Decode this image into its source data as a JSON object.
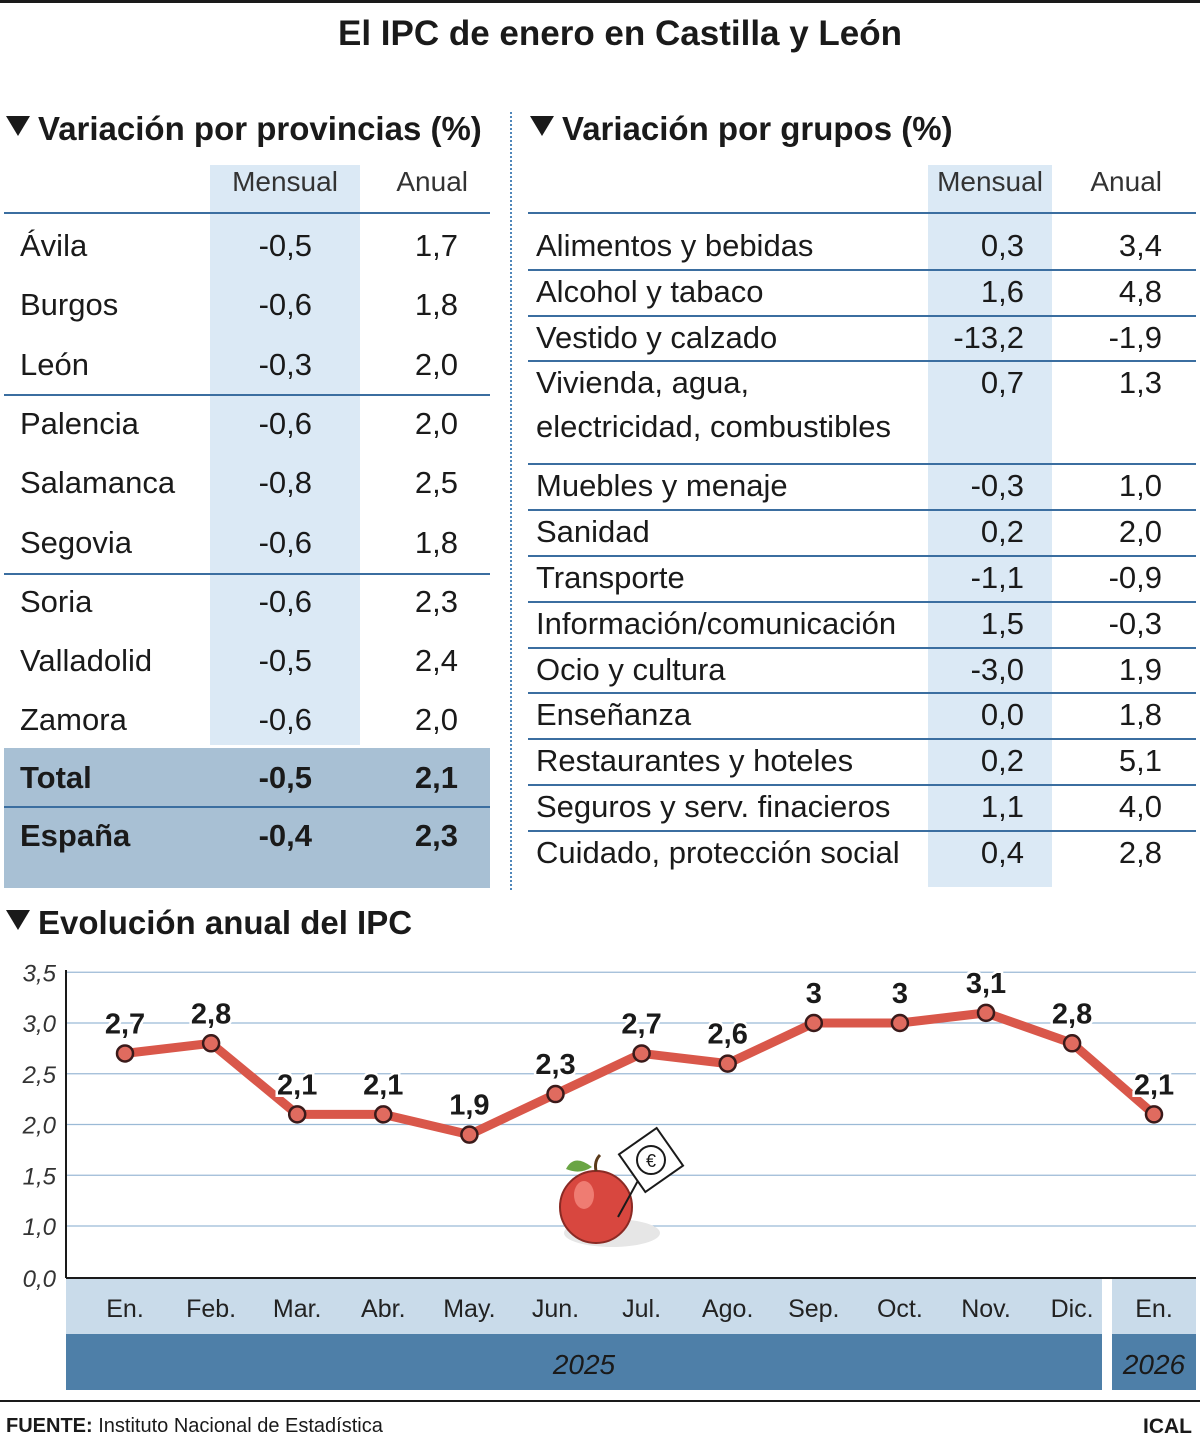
{
  "title": "El IPC de enero en Castilla y León",
  "provincias": {
    "title": "Variación por provincias (%)",
    "col_mensual": "Mensual",
    "col_anual": "Anual",
    "rows": [
      {
        "name": "Ávila",
        "mensual": "-0,5",
        "anual": "1,7"
      },
      {
        "name": "Burgos",
        "mensual": "-0,6",
        "anual": "1,8"
      },
      {
        "name": "León",
        "mensual": "-0,3",
        "anual": "2,0"
      },
      {
        "name": "Palencia",
        "mensual": "-0,6",
        "anual": "2,0"
      },
      {
        "name": "Salamanca",
        "mensual": "-0,8",
        "anual": "2,5"
      },
      {
        "name": "Segovia",
        "mensual": "-0,6",
        "anual": "1,8"
      },
      {
        "name": "Soria",
        "mensual": "-0,6",
        "anual": "2,3"
      },
      {
        "name": "Valladolid",
        "mensual": "-0,5",
        "anual": "2,4"
      },
      {
        "name": "Zamora",
        "mensual": "-0,6",
        "anual": "2,0"
      }
    ],
    "total": {
      "name": "Total",
      "mensual": "-0,5",
      "anual": "2,1"
    },
    "espana": {
      "name": "España",
      "mensual": "-0,4",
      "anual": "2,3"
    }
  },
  "grupos": {
    "title": "Variación por grupos (%)",
    "col_mensual": "Mensual",
    "col_anual": "Anual",
    "rows": [
      {
        "name": "Alimentos y bebidas",
        "mensual": "0,3",
        "anual": "3,4"
      },
      {
        "name": "Alcohol y tabaco",
        "mensual": "1,6",
        "anual": "4,8"
      },
      {
        "name": "Vestido y calzado",
        "mensual": "-13,2",
        "anual": "-1,9"
      },
      {
        "name": "Vivienda, agua,",
        "name2": "electricidad, combustibles",
        "mensual": "0,7",
        "anual": "1,3"
      },
      {
        "name": "Muebles y menaje",
        "mensual": "-0,3",
        "anual": "1,0"
      },
      {
        "name": "Sanidad",
        "mensual": "0,2",
        "anual": "2,0"
      },
      {
        "name": "Transporte",
        "mensual": "-1,1",
        "anual": "-0,9"
      },
      {
        "name": "Información/comunicación",
        "mensual": "1,5",
        "anual": "-0,3"
      },
      {
        "name": "Ocio y cultura",
        "mensual": "-3,0",
        "anual": "1,9"
      },
      {
        "name": "Enseñanza",
        "mensual": "0,0",
        "anual": "1,8"
      },
      {
        "name": "Restaurantes y hoteles",
        "mensual": "0,2",
        "anual": "5,1"
      },
      {
        "name": "Seguros y serv. finacieros",
        "mensual": "1,1",
        "anual": "4,0"
      },
      {
        "name": "Cuidado, protección social",
        "mensual": "0,4",
        "anual": "2,8"
      }
    ]
  },
  "chart_data": {
    "type": "line",
    "title": "Evolución anual del IPC",
    "categories": [
      "En.",
      "Feb.",
      "Mar.",
      "Abr.",
      "May.",
      "Jun.",
      "Jul.",
      "Ago.",
      "Sep.",
      "Oct.",
      "Nov.",
      "Dic.",
      "En."
    ],
    "values": [
      2.7,
      2.8,
      2.1,
      2.1,
      1.9,
      2.3,
      2.7,
      2.6,
      3.0,
      3.0,
      3.1,
      2.8,
      2.1
    ],
    "value_labels": [
      "2,7",
      "2,8",
      "2,1",
      "2,1",
      "1,9",
      "2,3",
      "2,7",
      "2,6",
      "3",
      "3",
      "3,1",
      "2,8",
      "2,1"
    ],
    "yticks": [
      0.0,
      1.0,
      1.5,
      2.0,
      2.5,
      3.0,
      3.5
    ],
    "ytick_labels": [
      "0,0",
      "1,0",
      "1,5",
      "2,0",
      "2,5",
      "3,0",
      "3,5"
    ],
    "ylim": [
      0.5,
      3.5
    ],
    "years": [
      {
        "label": "2025",
        "span": 12
      },
      {
        "label": "2026",
        "span": 1
      }
    ],
    "line_color": "#d9574a",
    "grid": true
  },
  "footer": {
    "source_label": "FUENTE:",
    "source_text": "Instituto Nacional de Estadística",
    "credit": "ICAL"
  }
}
